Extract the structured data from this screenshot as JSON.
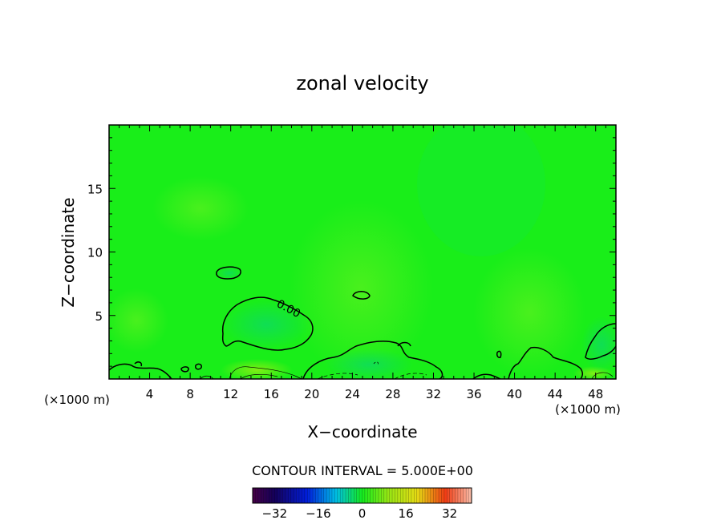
{
  "chart_data": {
    "type": "heatmap",
    "title": "zonal velocity",
    "xlabel": "X−coordinate",
    "ylabel": "Z−coordinate",
    "xlim": [
      0,
      50
    ],
    "ylim": [
      0,
      20
    ],
    "x_ticks": [
      4,
      8,
      12,
      16,
      20,
      24,
      28,
      32,
      36,
      40,
      44,
      48
    ],
    "y_ticks": [
      5,
      10,
      15
    ],
    "x_unit_label": "(×1000 m)",
    "x_unit_label_left": "(×1000 m)",
    "contour_label": "0.00",
    "contour_interval_text": "CONTOUR INTERVAL = 5.000E+00",
    "colorbar": {
      "range": [
        -40,
        40
      ],
      "ticks": [
        -32,
        -16,
        0,
        16,
        32
      ],
      "tick_labels": [
        "−32",
        "−16",
        "0",
        "16",
        "32"
      ]
    },
    "field_colors": {
      "background": "#19ee19",
      "slightly_positive": "#44f023",
      "slightly_negative": "#12e63c",
      "negative_core": "#12df5a"
    }
  }
}
